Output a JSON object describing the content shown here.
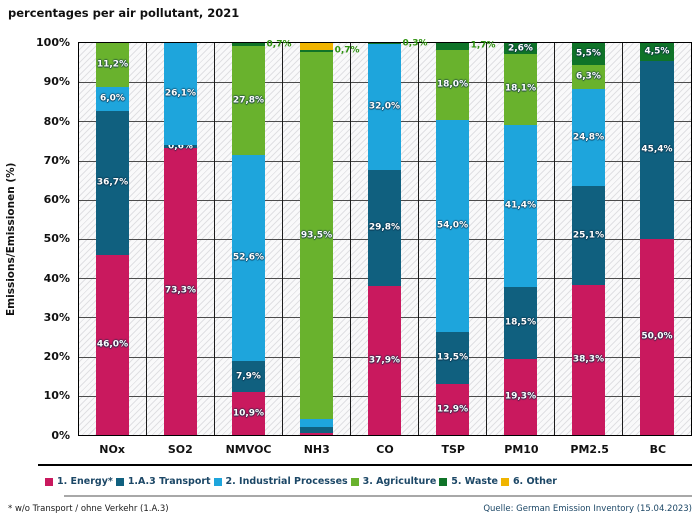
{
  "title": "percentages per air pollutant, 2021",
  "y_axis": {
    "label": "Emissions/Emissionen (%)",
    "ticks": [
      "100%",
      "90%",
      "80%",
      "70%",
      "60%",
      "50%",
      "40%",
      "30%",
      "20%",
      "10%",
      "0%"
    ]
  },
  "footnotes": {
    "left": "* w/o Transport / ohne Verkehr (1.A.3)",
    "right": "Quelle: German Emission Inventory (15.04.2023)"
  },
  "colors": {
    "energy": "#c9195e",
    "transport": "#10607f",
    "industrial": "#1ea5dc",
    "agriculture": "#69b22d",
    "waste": "#0f7328",
    "other": "#f0b400",
    "outside_label_text": "#2f9210",
    "legend_text": "#1c4766"
  },
  "legend": [
    {
      "name": "legend-item-energy",
      "label": "1. Energy*",
      "color": "#c9195e"
    },
    {
      "name": "legend-item-transport",
      "label": "1.A.3 Transport",
      "color": "#10607f"
    },
    {
      "name": "legend-item-industrial-processes",
      "label": "2. Industrial Processes",
      "color": "#1ea5dc"
    },
    {
      "name": "legend-item-agriculture",
      "label": "3. Agriculture",
      "color": "#69b22d"
    },
    {
      "name": "legend-item-waste",
      "label": "5. Waste",
      "color": "#0f7328"
    },
    {
      "name": "legend-item-other",
      "label": "6. Other",
      "color": "#f0b400"
    }
  ],
  "chart_data": {
    "type": "bar",
    "stacked": true,
    "title": "percentages per air pollutant, 2021",
    "ylabel": "Emissions/Emissionen (%)",
    "ylim": [
      0,
      100
    ],
    "grid": true,
    "legend_position": "bottom",
    "categories": [
      "NOx",
      "SO2",
      "NMVOC",
      "NH3",
      "CO",
      "TSP",
      "PM10",
      "PM2.5",
      "BC"
    ],
    "series": [
      {
        "name": "1. Energy*",
        "color": "#c9195e",
        "values": [
          46.0,
          73.3,
          10.9,
          0.5,
          37.9,
          12.9,
          19.3,
          38.3,
          50.0
        ],
        "labels": [
          "46,0%",
          "73,3%",
          "10,9%",
          "",
          "37,9%",
          "12,9%",
          "19,3%",
          "38,3%",
          "50,0%"
        ],
        "outside": [
          false,
          false,
          false,
          false,
          false,
          false,
          false,
          false,
          false
        ]
      },
      {
        "name": "1.A.3 Transport",
        "color": "#10607f",
        "values": [
          36.7,
          0.6,
          7.9,
          1.6,
          29.8,
          13.5,
          18.5,
          25.1,
          45.4
        ],
        "labels": [
          "36,7%",
          "0,6%",
          "7,9%",
          "",
          "29,8%",
          "13,5%",
          "18,5%",
          "25,1%",
          "45,4%"
        ],
        "outside": [
          false,
          false,
          false,
          false,
          false,
          false,
          false,
          false,
          false
        ]
      },
      {
        "name": "2. Industrial Processes",
        "color": "#1ea5dc",
        "values": [
          6.0,
          26.1,
          52.6,
          2.0,
          32.0,
          54.0,
          41.4,
          24.8,
          0
        ],
        "labels": [
          "6,0%",
          "26,1%",
          "52,6%",
          "",
          "32,0%",
          "54,0%",
          "41,4%",
          "24,8%",
          ""
        ],
        "outside": [
          false,
          false,
          false,
          false,
          false,
          false,
          false,
          false,
          false
        ]
      },
      {
        "name": "3. Agriculture",
        "color": "#69b22d",
        "values": [
          11.2,
          0,
          27.8,
          93.5,
          0,
          18.0,
          18.1,
          6.3,
          0
        ],
        "labels": [
          "11,2%",
          "",
          "27,8%",
          "93,5%",
          "",
          "18,0%",
          "18,1%",
          "6,3%",
          ""
        ],
        "outside": [
          false,
          false,
          false,
          false,
          false,
          false,
          false,
          false,
          false
        ]
      },
      {
        "name": "5. Waste",
        "color": "#0f7328",
        "values": [
          0,
          0,
          0.7,
          0.7,
          0.3,
          1.7,
          2.6,
          5.5,
          4.5
        ],
        "labels": [
          "",
          "",
          "0,7%",
          "0,7%",
          "0,3%",
          "1,7%",
          "2,6%",
          "5,5%",
          "4,5%"
        ],
        "outside": [
          false,
          false,
          true,
          true,
          true,
          true,
          false,
          false,
          false
        ]
      },
      {
        "name": "6. Other",
        "color": "#f0b400",
        "values": [
          0,
          0,
          0,
          1.7,
          0,
          0,
          0,
          0,
          0
        ],
        "labels": [
          "",
          "",
          "",
          "",
          "",
          "",
          "",
          "",
          ""
        ],
        "outside": [
          false,
          false,
          false,
          false,
          false,
          false,
          false,
          false,
          false
        ]
      }
    ]
  }
}
